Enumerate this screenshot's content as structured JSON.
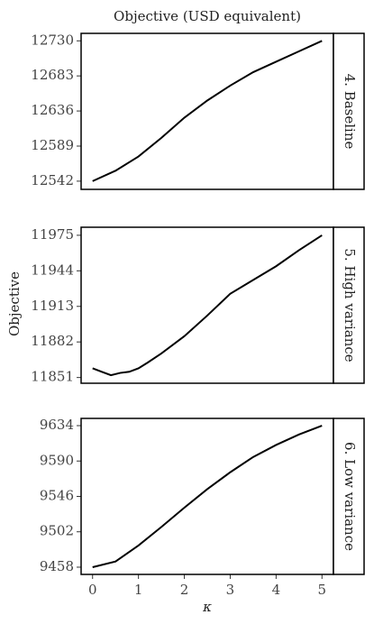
{
  "figure": {
    "title": "Objective (USD equivalent)",
    "xlabel": "κ",
    "ylabel": "Objective"
  },
  "chart_data": [
    {
      "type": "line",
      "title": "4. Baseline",
      "color": "#000000",
      "x": [
        0,
        0.5,
        1,
        1.5,
        2,
        2.5,
        3,
        3.5,
        4,
        4.5,
        5
      ],
      "values": [
        12542,
        12556,
        12575,
        12600,
        12627,
        12650,
        12670,
        12688,
        12702,
        12716,
        12730
      ],
      "xlim": [
        -0.25,
        5.25
      ],
      "ylim": [
        12531,
        12740
      ],
      "yticks": [
        12542,
        12589,
        12636,
        12683,
        12730
      ]
    },
    {
      "type": "line",
      "title": "5. High variance",
      "color": "#000000",
      "x": [
        0,
        0.2,
        0.4,
        0.6,
        0.8,
        1,
        1.2,
        1.5,
        2,
        2.5,
        3,
        3.5,
        4,
        4.5,
        5
      ],
      "values": [
        11859,
        11856,
        11853,
        11855,
        11856,
        11859,
        11864,
        11872,
        11887,
        11905,
        11924,
        11936,
        11948,
        11962,
        11975
      ],
      "xlim": [
        -0.25,
        5.25
      ],
      "ylim": [
        11846,
        11982
      ],
      "yticks": [
        11851,
        11882,
        11913,
        11944,
        11975
      ]
    },
    {
      "type": "line",
      "title": "6. Low variance",
      "color": "#000000",
      "x": [
        0,
        0.5,
        1,
        1.5,
        2,
        2.5,
        3,
        3.5,
        4,
        4.5,
        5
      ],
      "values": [
        9458,
        9465,
        9485,
        9508,
        9532,
        9555,
        9576,
        9595,
        9610,
        9623,
        9634
      ],
      "xlim": [
        -0.25,
        5.25
      ],
      "ylim": [
        9449,
        9643
      ],
      "yticks": [
        9458,
        9502,
        9546,
        9590,
        9634
      ],
      "xticks": [
        0,
        1,
        2,
        3,
        4,
        5
      ]
    }
  ]
}
